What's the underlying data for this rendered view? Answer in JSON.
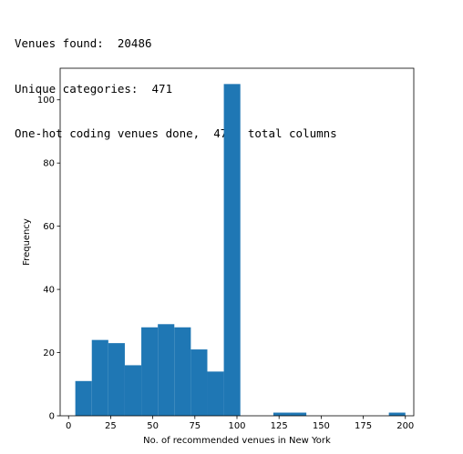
{
  "output": {
    "lines": [
      "Venues found:  20486",
      "Unique categories:  471",
      "One-hot coding venues done,  472  total columns"
    ]
  },
  "chart_data": {
    "type": "bar",
    "title": "",
    "xlabel": "No. of recommended venues in New York",
    "ylabel": "Frequency",
    "xlim": [
      -5,
      205
    ],
    "ylim": [
      0,
      110
    ],
    "xticks": [
      0,
      25,
      50,
      75,
      100,
      125,
      150,
      175,
      200
    ],
    "yticks": [
      0,
      20,
      40,
      60,
      80,
      100
    ],
    "bin_edges": [
      4,
      13.8,
      23.6,
      33.4,
      43.2,
      53,
      62.8,
      72.6,
      82.4,
      92.2,
      102,
      111.8,
      121.6,
      131.4,
      141.2,
      151,
      160.8,
      170.6,
      180.4,
      190.2,
      200
    ],
    "values": [
      11,
      24,
      23,
      16,
      28,
      29,
      28,
      21,
      14,
      105,
      0,
      0,
      1,
      1,
      0,
      0,
      0,
      0,
      0,
      1
    ],
    "color": "#1f77b4",
    "grid": false
  }
}
